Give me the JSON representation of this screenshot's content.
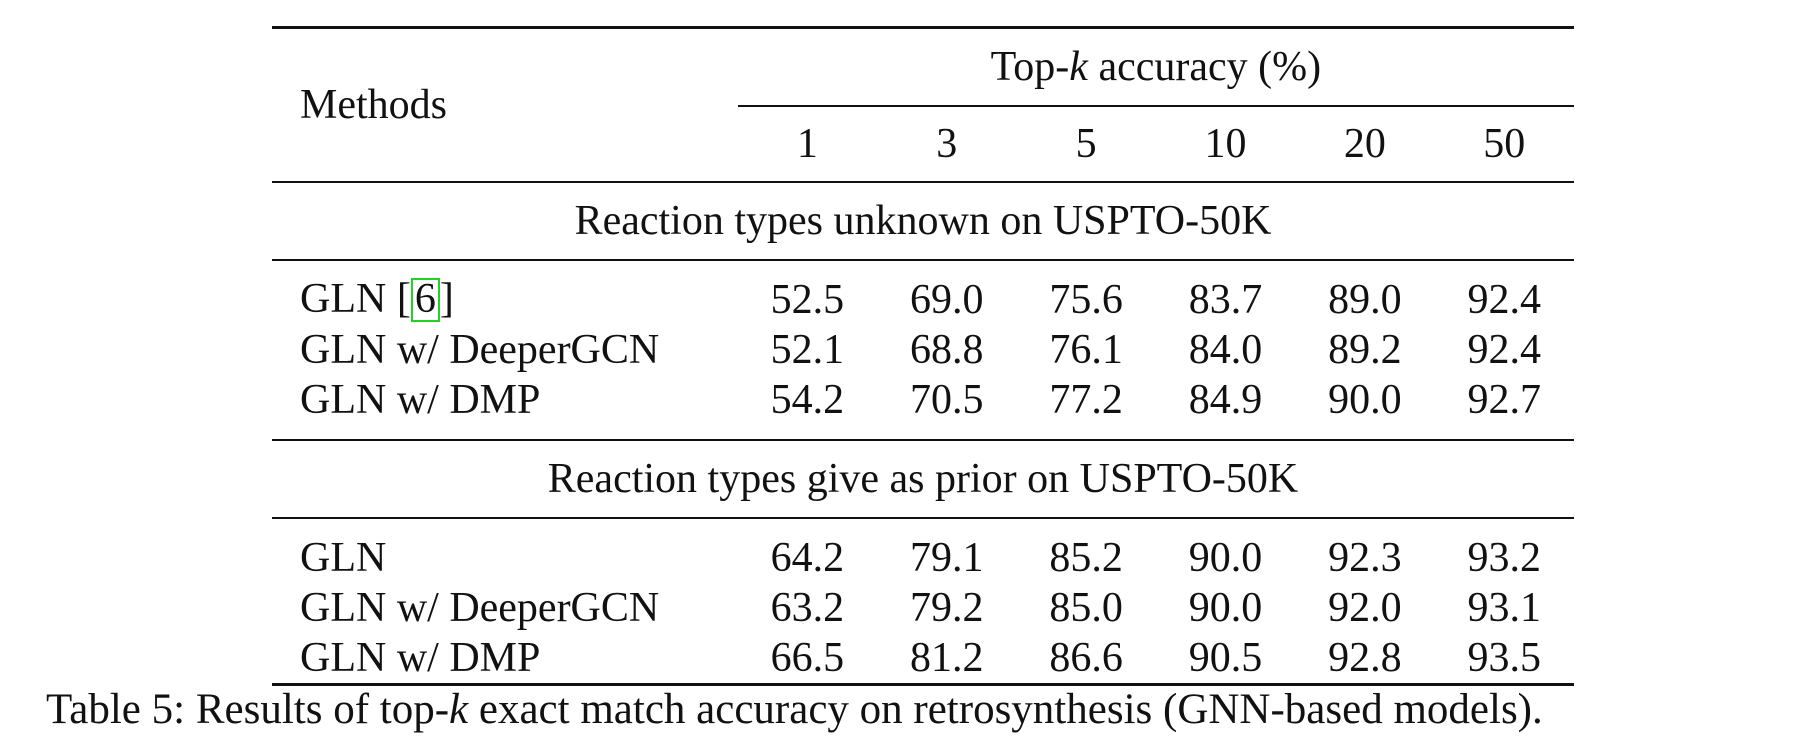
{
  "table": {
    "header": {
      "methods_label": "Methods",
      "group_prefix": "Top-",
      "group_k": "k",
      "group_suffix": " accuracy (%)",
      "k_values": [
        "1",
        "3",
        "5",
        "10",
        "20",
        "50"
      ]
    },
    "sections": [
      {
        "title": "Reaction types unknown on USPTO-50K",
        "rows": [
          {
            "method": "GLN [",
            "cite": "6",
            "method_suffix": "]",
            "values": [
              "52.5",
              "69.0",
              "75.6",
              "83.7",
              "89.0",
              "92.4"
            ]
          },
          {
            "method": "GLN w/ DeeperGCN",
            "values": [
              "52.1",
              "68.8",
              "76.1",
              "84.0",
              "89.2",
              "92.4"
            ]
          },
          {
            "method": "GLN w/ DMP",
            "values": [
              "54.2",
              "70.5",
              "77.2",
              "84.9",
              "90.0",
              "92.7"
            ]
          }
        ]
      },
      {
        "title": "Reaction types give as prior on USPTO-50K",
        "rows": [
          {
            "method": "GLN",
            "values": [
              "64.2",
              "79.1",
              "85.2",
              "90.0",
              "92.3",
              "93.2"
            ]
          },
          {
            "method": "GLN w/ DeeperGCN",
            "values": [
              "63.2",
              "79.2",
              "85.0",
              "90.0",
              "92.0",
              "93.1"
            ]
          },
          {
            "method": "GLN w/ DMP",
            "values": [
              "66.5",
              "81.2",
              "86.6",
              "90.5",
              "92.8",
              "93.5"
            ]
          }
        ]
      }
    ]
  },
  "caption": {
    "prefix": "Table 5: Results of top-",
    "k": "k",
    "suffix": " exact match accuracy on retrosynthesis (GNN-based models)."
  },
  "colors": {
    "text": "#111111",
    "citation_box": "#22d322"
  }
}
